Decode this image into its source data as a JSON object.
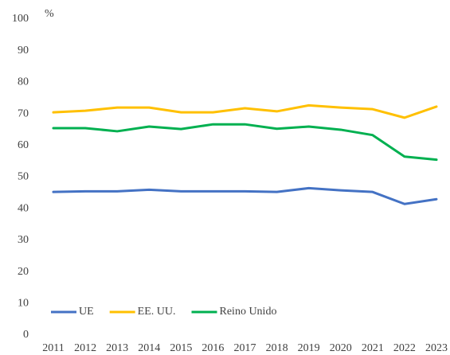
{
  "chart_data": {
    "type": "line",
    "y_label": "%",
    "categories": [
      "2011",
      "2012",
      "2013",
      "2014",
      "2015",
      "2016",
      "2017",
      "2018",
      "2019",
      "2020",
      "2021",
      "2022",
      "2023"
    ],
    "series": [
      {
        "name": "UE",
        "color": "#4472c4",
        "values": [
          45.3,
          45.5,
          45.5,
          46,
          45.5,
          45.5,
          45.5,
          45.3,
          46.5,
          45.8,
          45.3,
          41.5,
          43
        ]
      },
      {
        "name": "EE. UU.",
        "color": "#ffc000",
        "values": [
          70.5,
          71,
          72,
          72,
          70.5,
          70.5,
          71.8,
          70.8,
          72.7,
          72,
          71.5,
          68.8,
          72.3
        ]
      },
      {
        "name": "Reino Unido",
        "color": "#00b050",
        "values": [
          65.5,
          65.5,
          64.5,
          66,
          65.2,
          66.7,
          66.7,
          65.3,
          66,
          65,
          63.3,
          56.5,
          55.5
        ]
      }
    ],
    "ylim": [
      0,
      100
    ],
    "yticks": [
      0,
      10,
      20,
      30,
      40,
      50,
      60,
      70,
      80,
      90,
      100
    ],
    "grid": false,
    "legend": "lower left"
  }
}
